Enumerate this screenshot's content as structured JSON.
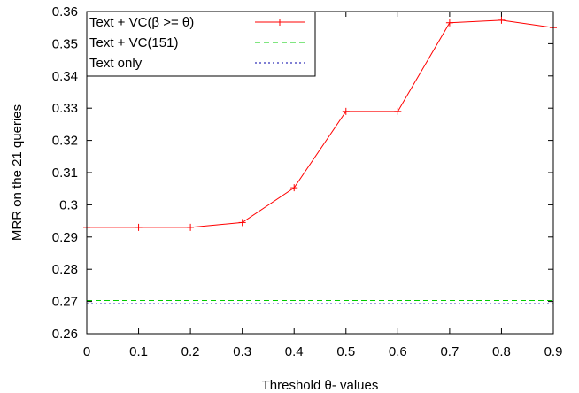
{
  "chart_data": {
    "type": "line",
    "xlabel": "Threshold θ- values",
    "ylabel": "MRR on the 21 queries",
    "xlim": [
      0,
      0.9
    ],
    "ylim": [
      0.26,
      0.36
    ],
    "x_ticks": [
      "0",
      "0.1",
      "0.2",
      "0.3",
      "0.4",
      "0.5",
      "0.6",
      "0.7",
      "0.8",
      "0.9"
    ],
    "y_ticks": [
      "0.26",
      "0.27",
      "0.28",
      "0.29",
      "0.3",
      "0.31",
      "0.32",
      "0.33",
      "0.34",
      "0.35",
      "0.36"
    ],
    "grid": false,
    "legend_position": "top-left",
    "series": [
      {
        "name": "Text + VC(β >= θ)",
        "color": "#ff0000",
        "style": "solid",
        "marker": "plus",
        "x": [
          0,
          0.1,
          0.2,
          0.3,
          0.4,
          0.5,
          0.6,
          0.7,
          0.8,
          0.9
        ],
        "y": [
          0.293,
          0.293,
          0.293,
          0.2945,
          0.3053,
          0.329,
          0.329,
          0.3565,
          0.3573,
          0.355
        ]
      },
      {
        "name": "Text + VC(151)",
        "color": "#00cc00",
        "style": "dashed",
        "marker": "none",
        "x": [
          0,
          0.9
        ],
        "y": [
          0.2703,
          0.2703
        ]
      },
      {
        "name": "Text only",
        "color": "#0000aa",
        "style": "dotted",
        "marker": "none",
        "x": [
          0,
          0.9
        ],
        "y": [
          0.2693,
          0.2693
        ]
      }
    ]
  }
}
